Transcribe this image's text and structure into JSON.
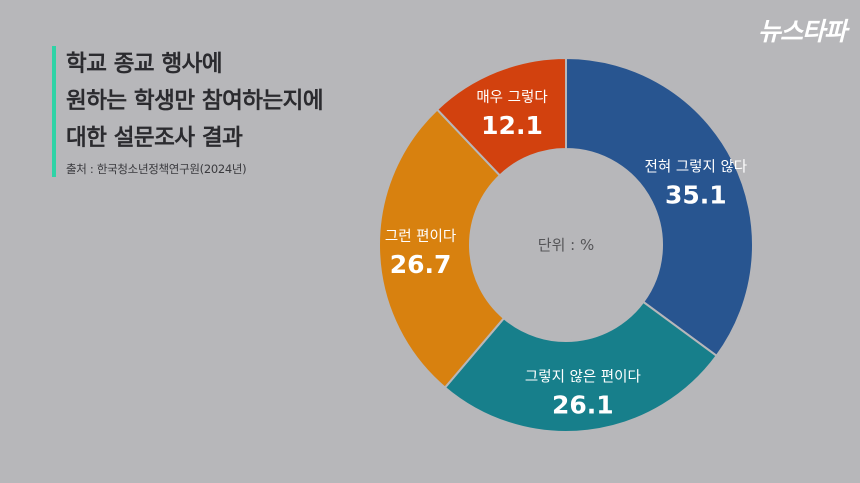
{
  "logo": "뉴스타파",
  "title_lines": [
    "학교 종교 행사에",
    "원하는 학생만 참여하는지에",
    "대한 설문조사 결과"
  ],
  "source": "출처 : 한국청소년정책연구원(2024년)",
  "chart_data": {
    "type": "pie",
    "donut": true,
    "unit_label": "단위 : %",
    "slices": [
      {
        "label": "전혀 그렇지 않다",
        "value": 35.1,
        "color": "#285590"
      },
      {
        "label": "그렇지 않은 편이다",
        "value": 26.1,
        "color": "#177f8b"
      },
      {
        "label": "그런 편이다",
        "value": 26.7,
        "color": "#d8810f"
      },
      {
        "label": "매우 그렇다",
        "value": 12.1,
        "color": "#d2410e"
      }
    ]
  }
}
